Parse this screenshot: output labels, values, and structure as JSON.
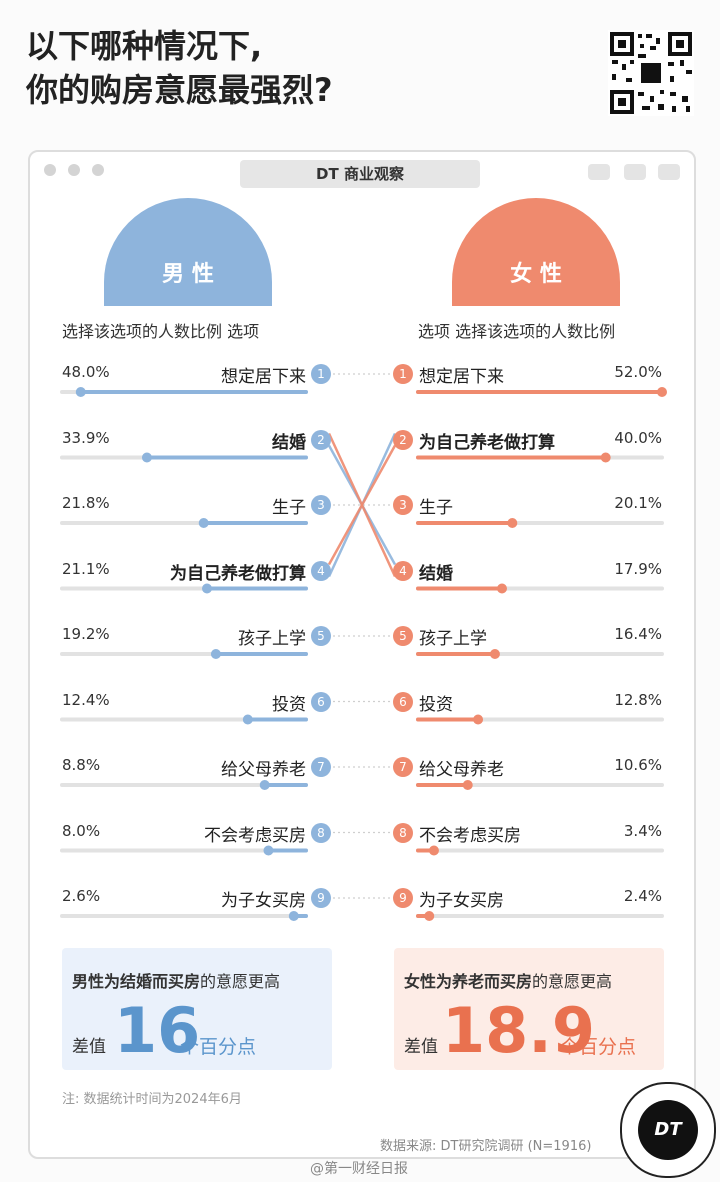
{
  "title_line1": "以下哪种情况下,",
  "title_line2": "你的购房意愿最强烈?",
  "brand": "DT 商业观察",
  "male_label": "男 性",
  "female_label": "女 性",
  "male_header": "选择该选项的人数比例  选项",
  "female_header": "选项  选择该选项的人数比例",
  "colors": {
    "male": "#8eb4dc",
    "female": "#ef8a6e",
    "male_box_bg": "#eaf1fb",
    "female_box_bg": "#fdece6",
    "male_big": "#5b95cc",
    "female_big": "#e9714f"
  },
  "chart_data": {
    "type": "bar",
    "series": [
      {
        "name": "男性",
        "items": [
          {
            "rank": "1",
            "label": "想定居下来",
            "pct": "48.0%",
            "value": 48.0
          },
          {
            "rank": "2",
            "label": "结婚",
            "pct": "33.9%",
            "value": 33.9
          },
          {
            "rank": "3",
            "label": "生子",
            "pct": "21.8%",
            "value": 21.8
          },
          {
            "rank": "4",
            "label": "为自己养老做打算",
            "pct": "21.1%",
            "value": 21.1
          },
          {
            "rank": "5",
            "label": "孩子上学",
            "pct": "19.2%",
            "value": 19.2
          },
          {
            "rank": "6",
            "label": "投资",
            "pct": "12.4%",
            "value": 12.4
          },
          {
            "rank": "7",
            "label": "给父母养老",
            "pct": "8.8%",
            "value": 8.8
          },
          {
            "rank": "8",
            "label": "不会考虑买房",
            "pct": "8.0%",
            "value": 8.0
          },
          {
            "rank": "9",
            "label": "为子女买房",
            "pct": "2.6%",
            "value": 2.6
          }
        ]
      },
      {
        "name": "女性",
        "items": [
          {
            "rank": "1",
            "label": "想定居下来",
            "pct": "52.0%",
            "value": 52.0
          },
          {
            "rank": "2",
            "label": "为自己养老做打算",
            "pct": "40.0%",
            "value": 40.0
          },
          {
            "rank": "3",
            "label": "生子",
            "pct": "20.1%",
            "value": 20.1
          },
          {
            "rank": "4",
            "label": "结婚",
            "pct": "17.9%",
            "value": 17.9
          },
          {
            "rank": "5",
            "label": "孩子上学",
            "pct": "16.4%",
            "value": 16.4
          },
          {
            "rank": "6",
            "label": "投资",
            "pct": "12.8%",
            "value": 12.8
          },
          {
            "rank": "7",
            "label": "给父母养老",
            "pct": "10.6%",
            "value": 10.6
          },
          {
            "rank": "8",
            "label": "不会考虑买房",
            "pct": "3.4%",
            "value": 3.4
          },
          {
            "rank": "9",
            "label": "为子女买房",
            "pct": "2.4%",
            "value": 2.4
          }
        ]
      }
    ],
    "highlight": {
      "male": [
        "结婚",
        "为自己养老做打算"
      ],
      "female": [
        "为自己养老做打算",
        "结婚"
      ]
    }
  },
  "male_box": {
    "pre": "男性为结婚而买房",
    "post": "的意愿更高",
    "diff_label": "差值",
    "diff_value": "16",
    "unit": "个百分点"
  },
  "female_box": {
    "pre": "女性为养老而买房",
    "post": "的意愿更高",
    "diff_label": "差值",
    "diff_value": "18.9",
    "unit": "个百分点"
  },
  "note": "注: 数据统计时间为2024年6月",
  "source": "数据来源: DT研究院调研 (N=1916)",
  "weibo": "@第一财经日报",
  "logo_text": "DT"
}
